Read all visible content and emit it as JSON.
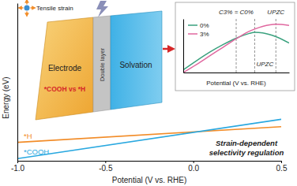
{
  "chart_data": [
    {
      "type": "line",
      "xlabel": "Potential (V vs. RHE)",
      "ylabel": "Energy (eV)",
      "x": [
        -1.0,
        0.5
      ],
      "series": [
        {
          "name": "*H",
          "color": "#f28c28",
          "values": [
            1.17,
            2.16
          ]
        },
        {
          "name": "*COOH",
          "color": "#29a8e0",
          "values": [
            0.14,
            2.63
          ]
        }
      ],
      "xlim": [
        -1.0,
        0.5
      ],
      "xticks": [
        {
          "value": -1.0,
          "label": "-1.0"
        },
        -0.5,
        {
          "value": 0.0,
          "label": "0.0"
        },
        0.5
      ],
      "ylim": [
        0,
        10
      ],
      "yticks": [],
      "tick_labels": "x",
      "annotations": [
        "Tensile strain",
        "Electrode",
        "*COOH vs *H",
        "Double layer",
        "Solvation",
        "Strain-dependent",
        "selectivity regulation"
      ]
    },
    {
      "type": "line",
      "xlabel": "Potential (V vs. RHE)",
      "x": [
        0,
        0.25,
        0.5,
        0.75,
        1.0,
        1.25,
        1.35,
        1.5,
        1.75,
        2.0
      ],
      "series": [
        {
          "name": "0%",
          "color": "#3aa17e",
          "values": [
            0.05,
            0.22,
            0.38,
            0.52,
            0.64,
            0.73,
            0.75,
            0.74,
            0.67,
            0.55
          ]
        },
        {
          "name": "3%",
          "color": "#e0679f",
          "values": [
            0.0,
            0.15,
            0.31,
            0.47,
            0.63,
            0.77,
            0.81,
            0.86,
            0.9,
            0.88
          ]
        }
      ],
      "xlim": [
        0,
        2
      ],
      "xticks": [],
      "ylim": [
        0,
        1
      ],
      "yticks": [],
      "tick_labels": false,
      "legend": "upper left",
      "annotations": [
        {
          "text": "C3% = C0%",
          "x": 1.0
        },
        {
          "text": "UPZC",
          "x": 1.35
        },
        {
          "text": "UPZC",
          "x": 1.75
        }
      ]
    }
  ]
}
